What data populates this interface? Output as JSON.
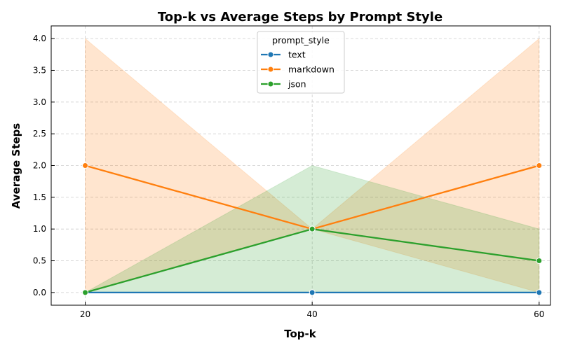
{
  "chart_data": {
    "type": "line",
    "title": "Top-k vs Average Steps by Prompt Style",
    "xlabel": "Top-k",
    "ylabel": "Average Steps",
    "x": [
      20,
      40,
      60
    ],
    "xticks": [
      "20",
      "40",
      "60"
    ],
    "yticks": [
      "0.0",
      "0.5",
      "1.0",
      "1.5",
      "2.0",
      "2.5",
      "3.0",
      "3.5",
      "4.0"
    ],
    "xlim": [
      17,
      61
    ],
    "ylim": [
      -0.2,
      4.2
    ],
    "grid": true,
    "legend": {
      "title": "prompt_style",
      "placement": "top-center"
    },
    "series": [
      {
        "name": "text",
        "color": "#1f77b4",
        "values": [
          0,
          0,
          0
        ],
        "band_low": [
          0,
          0,
          0
        ],
        "band_high": [
          0,
          0,
          0
        ]
      },
      {
        "name": "markdown",
        "color": "#ff7f0e",
        "values": [
          2.0,
          1.0,
          2.0
        ],
        "band_low": [
          0,
          1.0,
          0
        ],
        "band_high": [
          4.0,
          1.0,
          4.0
        ]
      },
      {
        "name": "json",
        "color": "#2ca02c",
        "values": [
          0,
          1.0,
          0.5
        ],
        "band_low": [
          0,
          0,
          0
        ],
        "band_high": [
          0,
          2.0,
          1.0
        ]
      }
    ]
  }
}
